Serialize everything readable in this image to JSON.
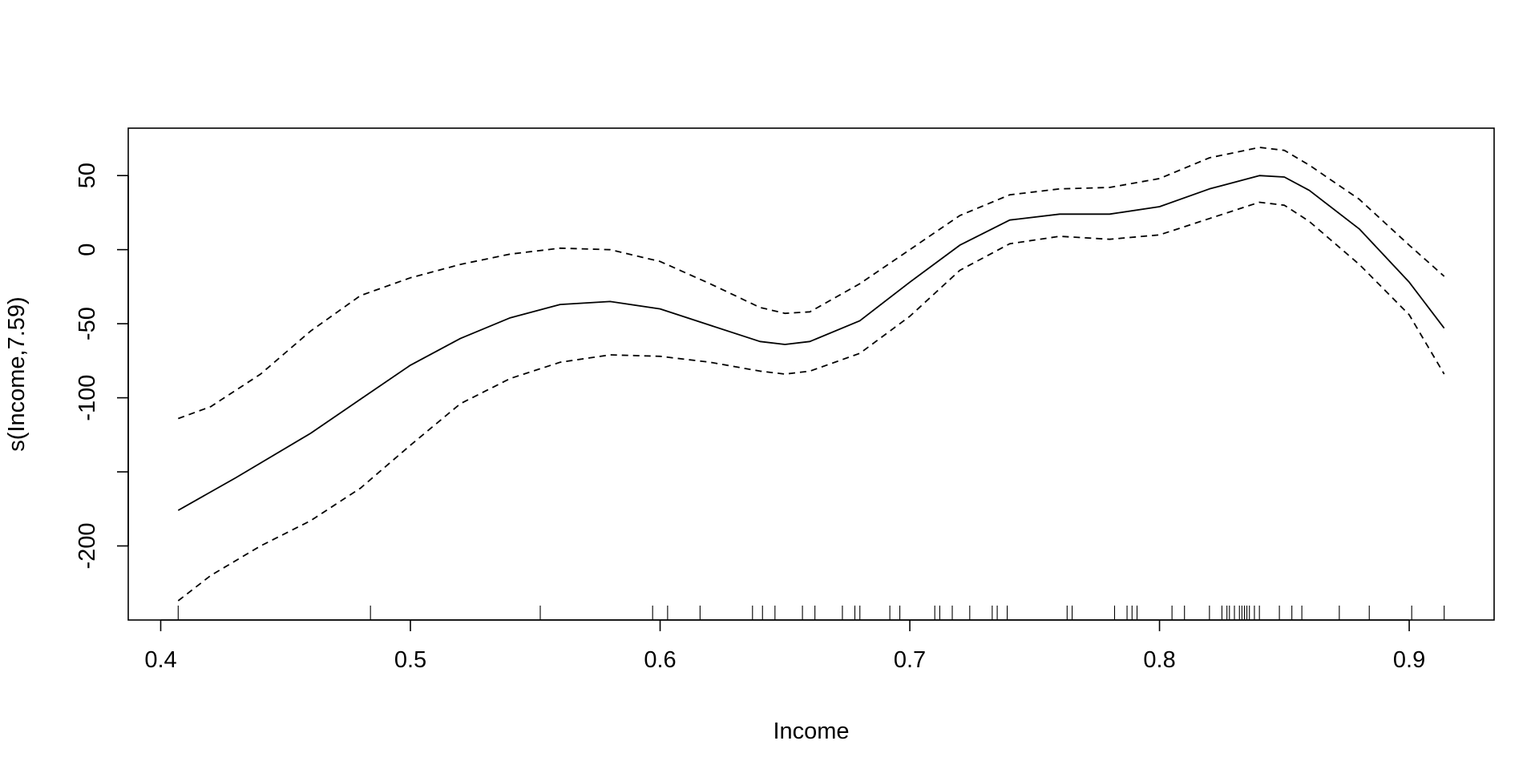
{
  "chart_data": {
    "type": "line",
    "xlabel": "Income",
    "ylabel": "s(Income,7.59)",
    "xlim": [
      0.387,
      0.934
    ],
    "ylim": [
      -250,
      82
    ],
    "x_ticks": [
      {
        "value": 0.4,
        "label": "0.4"
      },
      {
        "value": 0.5,
        "label": "0.5"
      },
      {
        "value": 0.6,
        "label": "0.6"
      },
      {
        "value": 0.7,
        "label": "0.7"
      },
      {
        "value": 0.8,
        "label": "0.8"
      },
      {
        "value": 0.9,
        "label": "0.9"
      }
    ],
    "y_ticks": [
      {
        "value": 50,
        "label": "50"
      },
      {
        "value": 0,
        "label": "0"
      },
      {
        "value": -50,
        "label": "-50"
      },
      {
        "value": -100,
        "label": "-100"
      },
      {
        "value": -150,
        "label": ""
      },
      {
        "value": -200,
        "label": "-200"
      }
    ],
    "series": [
      {
        "line_style": "solid",
        "x": [
          0.407,
          0.43,
          0.46,
          0.48,
          0.5,
          0.52,
          0.54,
          0.56,
          0.58,
          0.6,
          0.62,
          0.64,
          0.65,
          0.66,
          0.68,
          0.7,
          0.72,
          0.74,
          0.76,
          0.78,
          0.8,
          0.82,
          0.84,
          0.85,
          0.86,
          0.88,
          0.9,
          0.914
        ],
        "y": [
          -176,
          -154,
          -124,
          -101,
          -78,
          -60,
          -46,
          -37,
          -35,
          -40,
          -51,
          -62,
          -64,
          -62,
          -48,
          -22,
          3,
          20,
          24,
          24,
          29,
          41,
          50,
          49,
          40,
          14,
          -22,
          -53
        ]
      },
      {
        "line_style": "dashed",
        "x": [
          0.407,
          0.42,
          0.44,
          0.46,
          0.48,
          0.5,
          0.52,
          0.54,
          0.56,
          0.58,
          0.6,
          0.62,
          0.64,
          0.65,
          0.66,
          0.68,
          0.7,
          0.72,
          0.74,
          0.76,
          0.78,
          0.8,
          0.82,
          0.84,
          0.85,
          0.86,
          0.88,
          0.9,
          0.914
        ],
        "y": [
          -114,
          -106,
          -84,
          -55,
          -31,
          -19,
          -10,
          -3,
          1,
          0,
          -8,
          -23,
          -39,
          -43,
          -42,
          -23,
          0,
          23,
          37,
          41,
          42,
          48,
          62,
          69,
          67,
          57,
          34,
          3,
          -18
        ]
      },
      {
        "line_style": "dashed",
        "x": [
          0.407,
          0.42,
          0.44,
          0.46,
          0.48,
          0.5,
          0.52,
          0.54,
          0.56,
          0.58,
          0.6,
          0.62,
          0.64,
          0.65,
          0.66,
          0.68,
          0.7,
          0.72,
          0.74,
          0.76,
          0.78,
          0.8,
          0.82,
          0.84,
          0.85,
          0.86,
          0.88,
          0.9,
          0.914
        ],
        "y": [
          -237,
          -220,
          -200,
          -183,
          -161,
          -132,
          -104,
          -87,
          -76,
          -71,
          -72,
          -76,
          -82,
          -84,
          -82,
          -70,
          -45,
          -14,
          4,
          9,
          7,
          10,
          21,
          32,
          30,
          19,
          -10,
          -44,
          -84
        ]
      }
    ],
    "rug": [
      0.407,
      0.484,
      0.552,
      0.597,
      0.603,
      0.616,
      0.637,
      0.641,
      0.646,
      0.657,
      0.662,
      0.673,
      0.678,
      0.68,
      0.692,
      0.696,
      0.71,
      0.712,
      0.717,
      0.724,
      0.733,
      0.735,
      0.739,
      0.763,
      0.765,
      0.782,
      0.787,
      0.789,
      0.791,
      0.805,
      0.81,
      0.82,
      0.825,
      0.827,
      0.828,
      0.83,
      0.832,
      0.833,
      0.834,
      0.835,
      0.836,
      0.838,
      0.84,
      0.848,
      0.853,
      0.857,
      0.872,
      0.884,
      0.901,
      0.914
    ],
    "grid": false,
    "legend": "none"
  }
}
